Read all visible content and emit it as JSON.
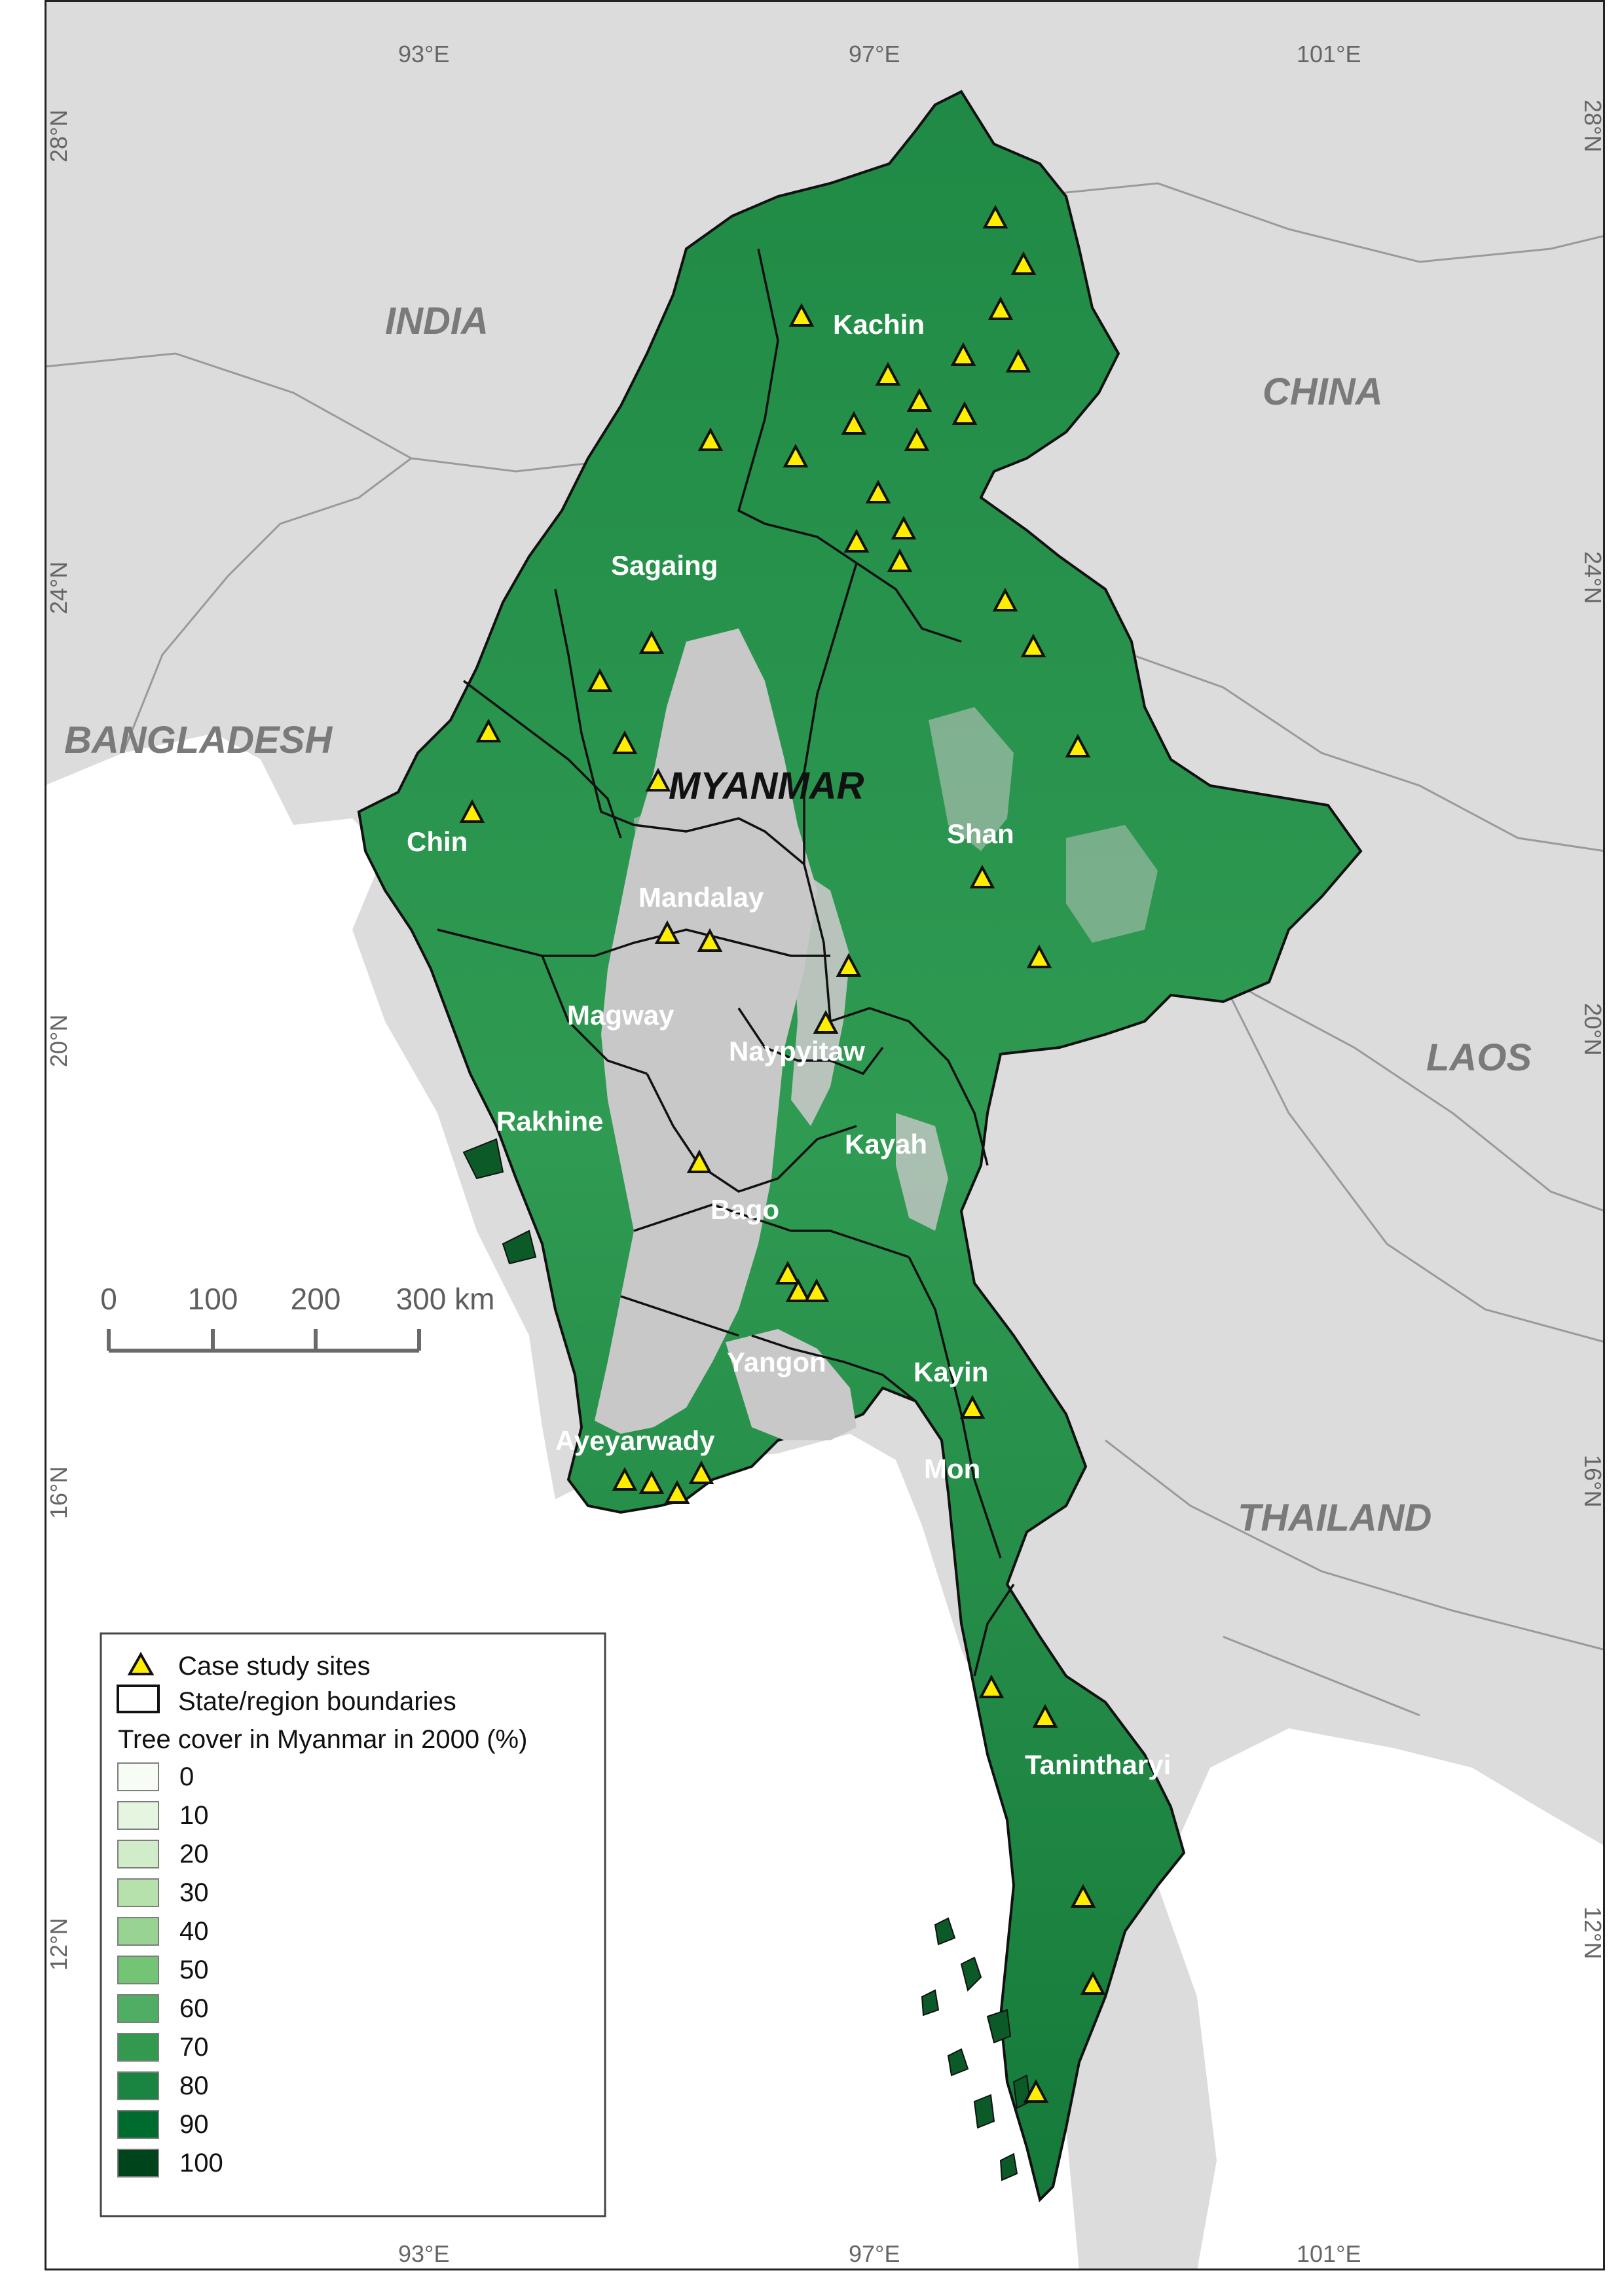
{
  "graticule": {
    "top": [
      "93°E",
      "97°E",
      "101°E"
    ],
    "bottom": [
      "93°E",
      "97°E",
      "101°E"
    ],
    "left": [
      "28°N",
      "24°N",
      "20°N",
      "16°N",
      "12°N"
    ],
    "right": [
      "28°N",
      "24°N",
      "20°N",
      "16°N",
      "12°N"
    ]
  },
  "countries": {
    "india": "INDIA",
    "china": "CHINA",
    "bangladesh": "BANGLADESH",
    "myanmar": "MYANMAR",
    "laos": "LAOS",
    "thailand": "THAILAND"
  },
  "regions": {
    "kachin": "Kachin",
    "sagaing": "Sagaing",
    "chin": "Chin",
    "shan": "Shan",
    "mandalay": "Mandalay",
    "magway": "Magway",
    "naypyitaw": "Naypyitaw",
    "rakhine": "Rakhine",
    "kayah": "Kayah",
    "bago": "Bago",
    "yangon": "Yangon",
    "kayin": "Kayin",
    "ayeyarwady": "Ayeyarwady",
    "mon": "Mon",
    "tanintharyi": "Tanintharyi"
  },
  "scale_bar": {
    "ticks": [
      "0",
      "100",
      "200",
      "300 km"
    ]
  },
  "legend": {
    "sites_label": "Case study sites",
    "boundaries_label": "State/region boundaries",
    "title": "Tree cover in Myanmar in 2000 (%)",
    "classes": [
      {
        "label": "0",
        "color": "#f7fcf5"
      },
      {
        "label": "10",
        "color": "#e5f5e0"
      },
      {
        "label": "20",
        "color": "#d1ecc9"
      },
      {
        "label": "30",
        "color": "#b6e1ac"
      },
      {
        "label": "40",
        "color": "#98d392"
      },
      {
        "label": "50",
        "color": "#74c476"
      },
      {
        "label": "60",
        "color": "#4fae63"
      },
      {
        "label": "70",
        "color": "#33994f"
      },
      {
        "label": "80",
        "color": "#1a8540"
      },
      {
        "label": "90",
        "color": "#006b2e"
      },
      {
        "label": "100",
        "color": "#00441b"
      }
    ]
  },
  "colors": {
    "land_other": "#dcdcdc",
    "sea": "#ffffff",
    "non_forest": "#c8c8c8",
    "site_marker": "#ffee00",
    "boundary": "#111111"
  }
}
